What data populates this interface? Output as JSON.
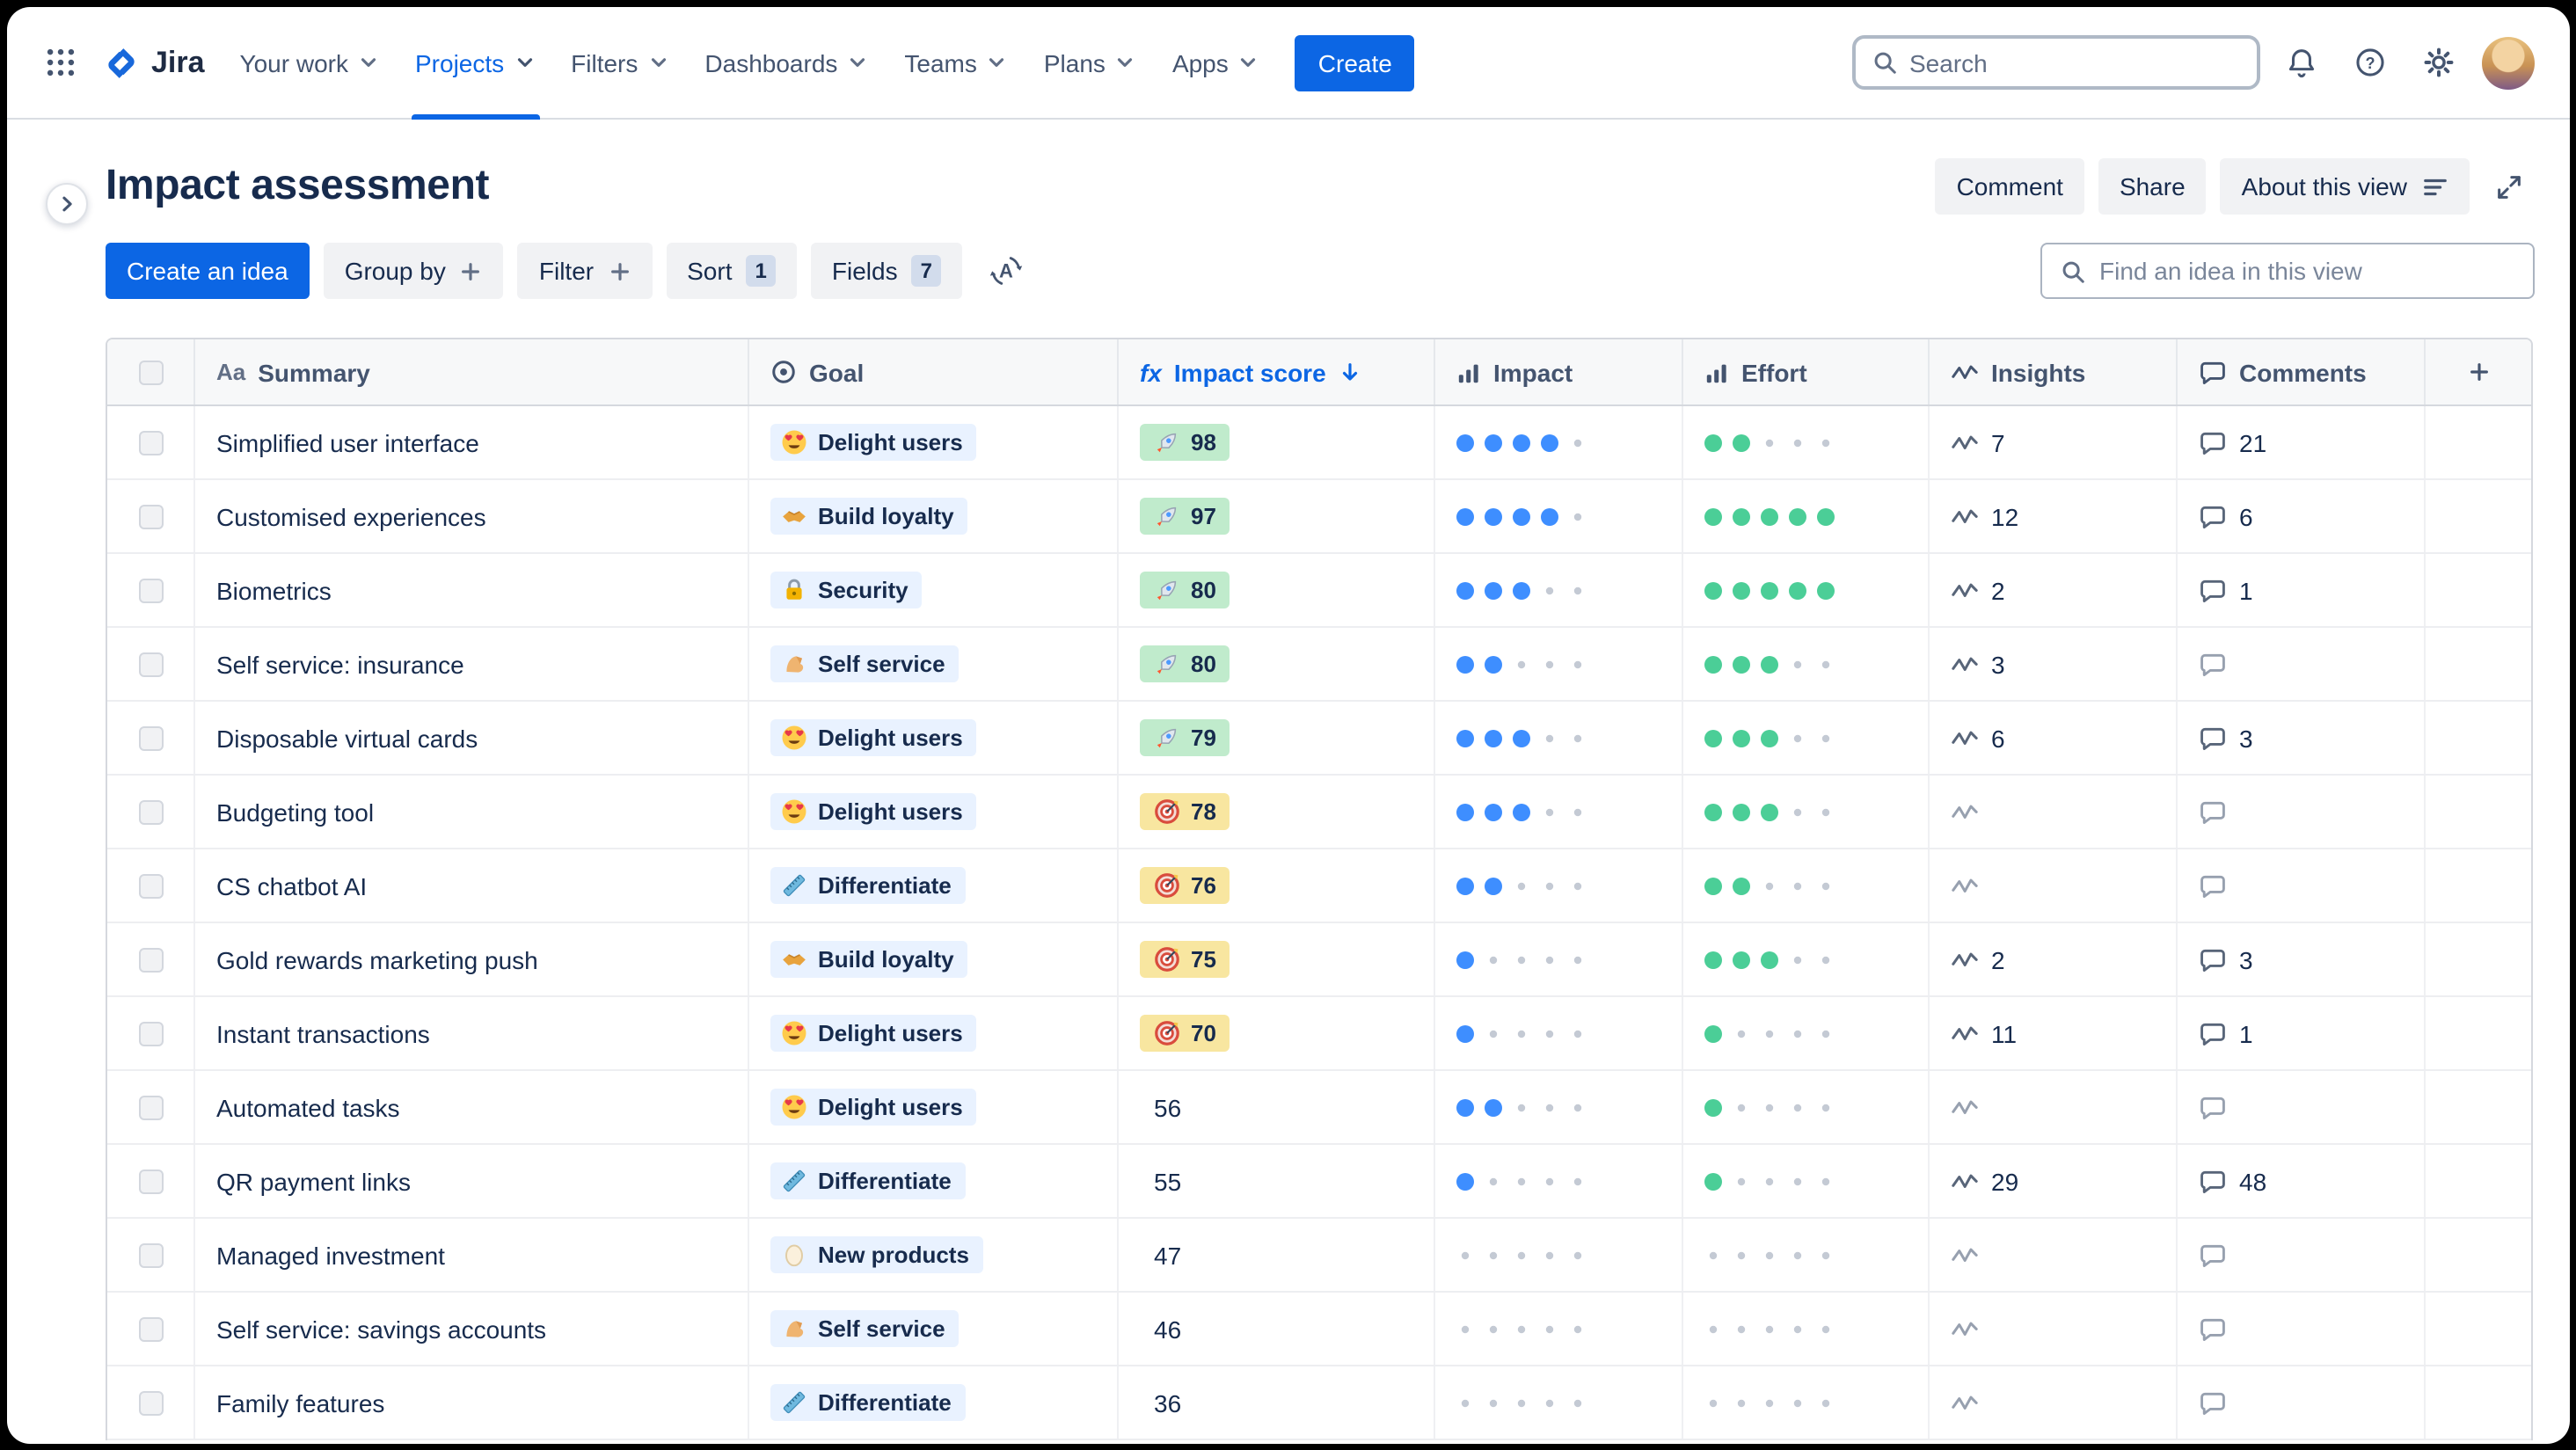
{
  "nav": {
    "logo": "Jira",
    "items": [
      {
        "label": "Your work",
        "active": false
      },
      {
        "label": "Projects",
        "active": true
      },
      {
        "label": "Filters",
        "active": false
      },
      {
        "label": "Dashboards",
        "active": false
      },
      {
        "label": "Teams",
        "active": false
      },
      {
        "label": "Plans",
        "active": false
      },
      {
        "label": "Apps",
        "active": false
      }
    ],
    "create_label": "Create",
    "search_placeholder": "Search",
    "right_icons": [
      "bell",
      "help",
      "gear",
      "avatar"
    ]
  },
  "header": {
    "title": "Impact assessment",
    "comment_label": "Comment",
    "share_label": "Share",
    "about_label": "About this view"
  },
  "toolbar": {
    "create_idea_label": "Create an idea",
    "group_by_label": "Group by",
    "filter_label": "Filter",
    "sort_label": "Sort",
    "sort_count": "1",
    "fields_label": "Fields",
    "fields_count": "7",
    "rank_icon": "rank",
    "find_placeholder": "Find an idea in this view"
  },
  "table": {
    "max_rating": 5,
    "columns": [
      {
        "key": "select",
        "label": "",
        "icon": null
      },
      {
        "key": "summary",
        "label": "Summary",
        "icon": "aa"
      },
      {
        "key": "goal",
        "label": "Goal",
        "icon": "goal"
      },
      {
        "key": "score",
        "label": "Impact score",
        "icon": "fx",
        "sorted": "desc",
        "accent": true
      },
      {
        "key": "impact",
        "label": "Impact",
        "icon": "bars"
      },
      {
        "key": "effort",
        "label": "Effort",
        "icon": "bars"
      },
      {
        "key": "insights",
        "label": "Insights",
        "icon": "pulse"
      },
      {
        "key": "comments",
        "label": "Comments",
        "icon": "comment"
      },
      {
        "key": "add",
        "label": "",
        "icon": "plus"
      }
    ],
    "rows": [
      {
        "summary": "Simplified user interface",
        "goal": {
          "label": "Delight users",
          "emoji": "heart-eyes"
        },
        "score": {
          "value": 98,
          "emoji": "rocket",
          "badge": "green"
        },
        "impact": 4,
        "effort": 2,
        "insights": 7,
        "comments": 21
      },
      {
        "summary": "Customised experiences",
        "goal": {
          "label": "Build loyalty",
          "emoji": "handshake"
        },
        "score": {
          "value": 97,
          "emoji": "rocket",
          "badge": "green"
        },
        "impact": 4,
        "effort": 5,
        "insights": 12,
        "comments": 6
      },
      {
        "summary": "Biometrics",
        "goal": {
          "label": "Security",
          "emoji": "lock"
        },
        "score": {
          "value": 80,
          "emoji": "rocket",
          "badge": "green"
        },
        "impact": 3,
        "effort": 5,
        "insights": 2,
        "comments": 1
      },
      {
        "summary": "Self service: insurance",
        "goal": {
          "label": "Self service",
          "emoji": "muscle"
        },
        "score": {
          "value": 80,
          "emoji": "rocket",
          "badge": "green"
        },
        "impact": 2,
        "effort": 3,
        "insights": 3,
        "comments": null
      },
      {
        "summary": "Disposable virtual cards",
        "goal": {
          "label": "Delight users",
          "emoji": "heart-eyes"
        },
        "score": {
          "value": 79,
          "emoji": "rocket",
          "badge": "green"
        },
        "impact": 3,
        "effort": 3,
        "insights": 6,
        "comments": 3
      },
      {
        "summary": "Budgeting tool",
        "goal": {
          "label": "Delight users",
          "emoji": "heart-eyes"
        },
        "score": {
          "value": 78,
          "emoji": "target",
          "badge": "yellow"
        },
        "impact": 3,
        "effort": 3,
        "insights": null,
        "comments": null
      },
      {
        "summary": "CS chatbot AI",
        "goal": {
          "label": "Differentiate",
          "emoji": "ruler"
        },
        "score": {
          "value": 76,
          "emoji": "target",
          "badge": "yellow"
        },
        "impact": 2,
        "effort": 2,
        "insights": null,
        "comments": null
      },
      {
        "summary": "Gold rewards marketing push",
        "goal": {
          "label": "Build loyalty",
          "emoji": "handshake"
        },
        "score": {
          "value": 75,
          "emoji": "target",
          "badge": "yellow"
        },
        "impact": 1,
        "effort": 3,
        "insights": 2,
        "comments": 3
      },
      {
        "summary": "Instant transactions",
        "goal": {
          "label": "Delight users",
          "emoji": "heart-eyes"
        },
        "score": {
          "value": 70,
          "emoji": "target",
          "badge": "yellow"
        },
        "impact": 1,
        "effort": 1,
        "insights": 11,
        "comments": 1
      },
      {
        "summary": "Automated tasks",
        "goal": {
          "label": "Delight users",
          "emoji": "heart-eyes"
        },
        "score": {
          "value": 56,
          "emoji": null,
          "badge": null
        },
        "impact": 2,
        "effort": 1,
        "insights": null,
        "comments": null
      },
      {
        "summary": "QR payment links",
        "goal": {
          "label": "Differentiate",
          "emoji": "ruler"
        },
        "score": {
          "value": 55,
          "emoji": null,
          "badge": null
        },
        "impact": 1,
        "effort": 1,
        "insights": 29,
        "comments": 48
      },
      {
        "summary": "Managed investment",
        "goal": {
          "label": "New products",
          "emoji": "egg"
        },
        "score": {
          "value": 47,
          "emoji": null,
          "badge": null
        },
        "impact": 0,
        "effort": 0,
        "insights": null,
        "comments": null
      },
      {
        "summary": "Self service: savings accounts",
        "goal": {
          "label": "Self service",
          "emoji": "muscle"
        },
        "score": {
          "value": 46,
          "emoji": null,
          "badge": null
        },
        "impact": 0,
        "effort": 0,
        "insights": null,
        "comments": null
      },
      {
        "summary": "Family features",
        "goal": {
          "label": "Differentiate",
          "emoji": "ruler"
        },
        "score": {
          "value": 36,
          "emoji": null,
          "badge": null
        },
        "impact": 0,
        "effort": 0,
        "insights": null,
        "comments": null
      }
    ]
  },
  "colors": {
    "accent_blue": "#0C66E4",
    "goal_chip_bg": "#E9F2FF",
    "score_green_bg": "#C0EBCC",
    "score_yellow_bg": "#F8E6A0",
    "impact_dot": "#3E8EFF",
    "effort_dot": "#4BCE97",
    "empty_dot": "#C4CAD4"
  }
}
